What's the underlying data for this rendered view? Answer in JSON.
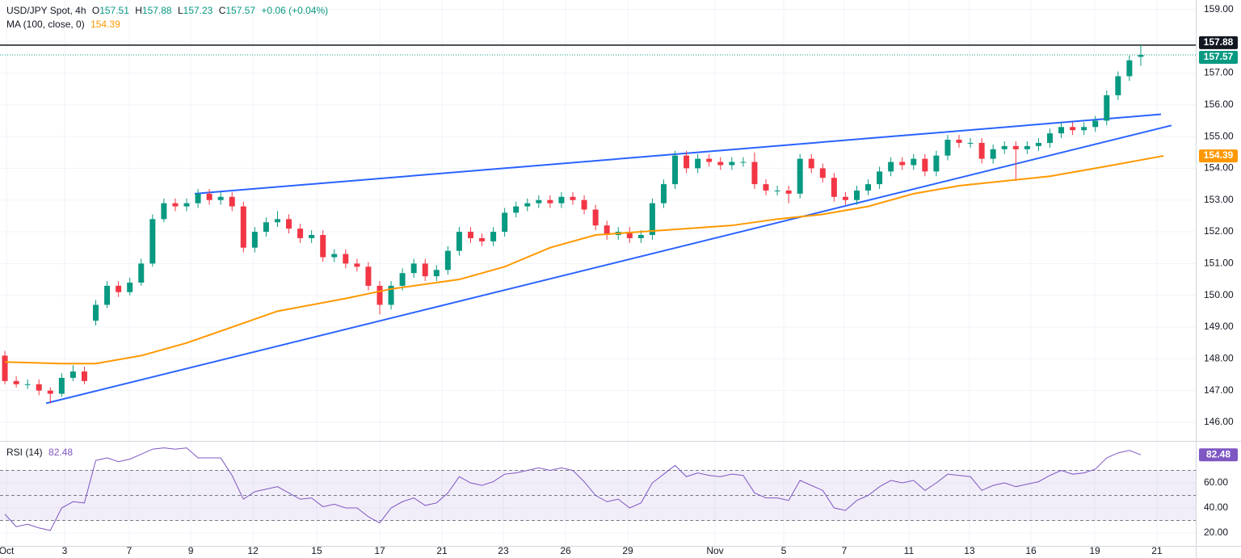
{
  "chart_data": {
    "type": "candlestick",
    "title": "USD/JPY Spot, 4h",
    "ohlc_letters": [
      "O",
      "H",
      "L",
      "C"
    ],
    "change": "+0.06 (+0.04%)",
    "up_color": "#089981",
    "down_color": "#f23645",
    "open": [
      148.1,
      147.3,
      147.2,
      147.2,
      147.0,
      146.9,
      147.4,
      147.6,
      149.2,
      149.7,
      150.3,
      150.1,
      150.4,
      151.0,
      152.4,
      152.9,
      152.8,
      152.9,
      153.2,
      153.0,
      153.1,
      152.8,
      151.5,
      152.0,
      152.3,
      152.4,
      152.1,
      151.8,
      151.9,
      151.2,
      151.3,
      151.0,
      150.9,
      150.3,
      149.7,
      150.3,
      150.7,
      151.0,
      150.6,
      150.8,
      151.4,
      152.0,
      151.8,
      151.7,
      152.0,
      152.6,
      152.8,
      152.9,
      153.0,
      152.9,
      153.1,
      153.0,
      152.7,
      152.2,
      151.9,
      152.0,
      151.8,
      151.9,
      152.9,
      153.5,
      154.4,
      154.0,
      154.3,
      154.2,
      154.1,
      154.2,
      154.2,
      153.5,
      153.3,
      153.3,
      153.2,
      154.3,
      154.0,
      153.7,
      153.1,
      153.0,
      153.3,
      153.5,
      153.9,
      154.2,
      154.1,
      154.3,
      153.9,
      154.4,
      154.9,
      154.8,
      154.8,
      154.3,
      154.6,
      154.7,
      154.6,
      154.7,
      154.8,
      155.1,
      155.3,
      155.2,
      155.3,
      155.5,
      156.3,
      156.9,
      157.51
    ],
    "high": [
      148.25,
      147.45,
      147.35,
      147.35,
      147.1,
      147.55,
      147.8,
      147.75,
      149.85,
      150.45,
      150.45,
      150.55,
      151.15,
      152.55,
      153.05,
      153.05,
      153.05,
      153.35,
      153.35,
      153.25,
      153.25,
      152.95,
      152.15,
      152.45,
      152.65,
      152.55,
      152.25,
      152.05,
      152.05,
      151.45,
      151.45,
      151.15,
      151.05,
      150.45,
      150.45,
      150.85,
      151.15,
      151.15,
      150.95,
      151.55,
      152.15,
      152.15,
      151.95,
      152.15,
      152.75,
      152.95,
      153.05,
      153.15,
      153.15,
      153.25,
      153.25,
      153.15,
      152.85,
      152.35,
      152.15,
      152.15,
      152.05,
      153.05,
      153.65,
      154.55,
      154.55,
      154.45,
      154.45,
      154.35,
      154.35,
      154.35,
      154.5,
      153.65,
      153.45,
      153.45,
      154.45,
      154.45,
      154.15,
      153.85,
      153.25,
      153.45,
      153.65,
      154.05,
      154.35,
      154.35,
      154.45,
      154.45,
      154.55,
      155.05,
      155.05,
      154.95,
      154.95,
      154.75,
      154.85,
      154.85,
      154.85,
      154.95,
      155.25,
      155.45,
      155.45,
      155.45,
      155.65,
      156.45,
      157.05,
      157.55,
      157.88
    ],
    "low": [
      147.2,
      147.1,
      147.05,
      146.85,
      146.6,
      146.8,
      147.3,
      147.2,
      149.05,
      149.6,
      149.95,
      150.0,
      150.3,
      150.9,
      152.3,
      152.65,
      152.65,
      152.75,
      152.85,
      152.85,
      152.65,
      151.35,
      151.35,
      151.85,
      152.15,
      151.95,
      151.65,
      151.65,
      151.05,
      151.05,
      150.85,
      150.75,
      150.15,
      149.4,
      149.55,
      150.15,
      150.55,
      150.45,
      150.45,
      150.65,
      151.25,
      151.65,
      151.55,
      151.55,
      151.85,
      152.45,
      152.65,
      152.75,
      152.75,
      152.75,
      152.85,
      152.55,
      152.05,
      151.75,
      151.75,
      151.65,
      151.65,
      151.75,
      152.75,
      153.35,
      153.85,
      153.85,
      154.05,
      153.95,
      153.95,
      154.05,
      153.35,
      153.15,
      153.15,
      152.9,
      153.05,
      153.85,
      153.55,
      152.95,
      152.85,
      152.85,
      153.15,
      153.35,
      153.75,
      153.95,
      153.95,
      153.75,
      153.75,
      154.25,
      154.65,
      154.65,
      154.15,
      154.15,
      154.45,
      153.6,
      154.45,
      154.55,
      154.65,
      154.95,
      155.05,
      155.05,
      155.15,
      155.35,
      156.15,
      156.75,
      157.23
    ],
    "close": [
      147.3,
      147.2,
      147.2,
      147.0,
      146.9,
      147.4,
      147.6,
      147.3,
      149.7,
      150.3,
      150.1,
      150.4,
      151.0,
      152.4,
      152.9,
      152.8,
      152.9,
      153.2,
      153.0,
      153.1,
      152.8,
      151.5,
      152.0,
      152.3,
      152.4,
      152.1,
      151.8,
      151.9,
      151.2,
      151.3,
      151.0,
      150.9,
      150.3,
      149.7,
      150.3,
      150.7,
      151.0,
      150.6,
      150.8,
      151.4,
      152.0,
      151.8,
      151.7,
      152.0,
      152.6,
      152.8,
      152.9,
      153.0,
      152.9,
      153.1,
      153.0,
      152.7,
      152.2,
      151.9,
      152.0,
      151.8,
      151.9,
      152.9,
      153.5,
      154.4,
      154.0,
      154.3,
      154.2,
      154.1,
      154.2,
      154.2,
      153.5,
      153.3,
      153.3,
      153.2,
      154.3,
      154.0,
      153.7,
      153.1,
      153.0,
      153.3,
      153.5,
      153.9,
      154.2,
      154.1,
      154.3,
      153.9,
      154.4,
      154.9,
      154.8,
      154.8,
      154.3,
      154.6,
      154.7,
      154.6,
      154.7,
      154.8,
      155.1,
      155.3,
      155.2,
      155.3,
      155.5,
      156.3,
      156.9,
      157.4,
      157.57
    ],
    "xlim": [
      -0.43,
      104.84
    ],
    "xticks": [
      {
        "value": 0.14,
        "label": "Oct"
      },
      {
        "value": 5.26,
        "label": "3"
      },
      {
        "value": 10.95,
        "label": "7"
      },
      {
        "value": 16.36,
        "label": "9"
      },
      {
        "value": 21.84,
        "label": "12"
      },
      {
        "value": 27.45,
        "label": "15"
      },
      {
        "value": 33,
        "label": "17"
      },
      {
        "value": 38.48,
        "label": "21"
      },
      {
        "value": 43.88,
        "label": "23"
      },
      {
        "value": 49.36,
        "label": "26"
      },
      {
        "value": 54.84,
        "label": "29"
      },
      {
        "value": 62.52,
        "label": "Nov"
      },
      {
        "value": 68.56,
        "label": "5"
      },
      {
        "value": 73.9,
        "label": "7"
      },
      {
        "value": 79.59,
        "label": "11"
      },
      {
        "value": 84.92,
        "label": "13"
      },
      {
        "value": 90.33,
        "label": "16"
      },
      {
        "value": 95.95,
        "label": "19"
      },
      {
        "value": 101.42,
        "label": "21"
      }
    ],
    "ylim": [
      145.44,
      159.3
    ],
    "yticks": [
      {
        "value": 146,
        "label": "146.00"
      },
      {
        "value": 147,
        "label": "147.00"
      },
      {
        "value": 148,
        "label": "148.00"
      },
      {
        "value": 149,
        "label": "149.00"
      },
      {
        "value": 150,
        "label": "150.00"
      },
      {
        "value": 151,
        "label": "151.00"
      },
      {
        "value": 152,
        "label": "152.00"
      },
      {
        "value": 153,
        "label": "153.00"
      },
      {
        "value": 154,
        "label": "154.00"
      },
      {
        "value": 155,
        "label": "155.00"
      },
      {
        "value": 156,
        "label": "156.00"
      },
      {
        "value": 157,
        "label": "157.00"
      },
      {
        "value": 158,
        "label": "158.00"
      },
      {
        "value": 159,
        "label": "159.00"
      }
    ],
    "grid": true,
    "ma": {
      "name": "MA (100, close, 0)",
      "color": "#ff9800",
      "x": [
        0,
        5,
        8,
        12,
        16,
        20,
        24,
        30,
        34,
        40,
        44,
        48,
        52,
        56,
        60,
        64,
        68,
        72,
        76,
        80,
        84,
        88,
        92,
        96,
        102
      ],
      "values": [
        147.9,
        147.85,
        147.85,
        148.1,
        148.5,
        149.0,
        149.5,
        149.9,
        150.2,
        150.5,
        150.9,
        151.5,
        151.9,
        152.0,
        152.1,
        152.2,
        152.4,
        152.55,
        152.8,
        153.2,
        153.45,
        153.6,
        153.75,
        154.0,
        154.39
      ]
    },
    "trendlines": [
      {
        "color": "#2962ff",
        "x": [
          16.71,
          101.78
        ],
        "values": [
          153.2,
          155.7
        ]
      },
      {
        "color": "#2962ff",
        "x": [
          3.63,
          102.7
        ],
        "values": [
          146.6,
          155.35
        ]
      }
    ],
    "price_lines": [
      {
        "value": 157.88,
        "style": "solid",
        "color": "#131722"
      },
      {
        "value": 157.57,
        "style": "dotted",
        "color": "#089981"
      }
    ],
    "rsi": {
      "name": "RSI (14)",
      "color": "#7e57c2",
      "ylim": [
        10.3,
        92.3
      ],
      "yticks": [
        {
          "value": 20,
          "label": "20.00"
        },
        {
          "value": 40,
          "label": "40.00"
        },
        {
          "value": 60,
          "label": "60.00"
        }
      ],
      "bands": [
        30,
        50,
        70
      ],
      "values": [
        35,
        25,
        27,
        24,
        22,
        40,
        45,
        44,
        78,
        80,
        77,
        79,
        83,
        87,
        88,
        87,
        88,
        80,
        80,
        80,
        66,
        47,
        53,
        55,
        57,
        52,
        47,
        48,
        41,
        43,
        40,
        40,
        33,
        28,
        40,
        45,
        48,
        42,
        44,
        52,
        65,
        60,
        58,
        61,
        67,
        68,
        70,
        72,
        70,
        72,
        70,
        61,
        50,
        45,
        47,
        40,
        44,
        60,
        67,
        74,
        65,
        68,
        66,
        65,
        67,
        66,
        52,
        48,
        48,
        46,
        62,
        58,
        54,
        40,
        38,
        46,
        50,
        57,
        62,
        60,
        62,
        54,
        60,
        67,
        66,
        65,
        54,
        58,
        60,
        57,
        59,
        61,
        66,
        70,
        67,
        68,
        71,
        80,
        84,
        86,
        82.48
      ]
    }
  }
}
